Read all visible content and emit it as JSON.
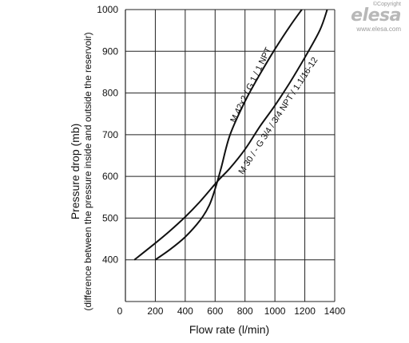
{
  "logo": {
    "copyright": "©Copyright",
    "brand": "elesa",
    "url": "www.elesa.com"
  },
  "chart_data": {
    "type": "line",
    "title": "",
    "xlabel": "Flow rate (l/min)",
    "ylabel": "Pressure drop (mb)",
    "ylabel_sub": "(difference between the pressure inside and outside the reservoir)",
    "xlim": [
      0,
      1400
    ],
    "ylim": [
      300,
      1000
    ],
    "x_ticks": [
      "0",
      "200",
      "400",
      "600",
      "800",
      "1000",
      "1200",
      "1400"
    ],
    "y_ticks": [
      "400",
      "500",
      "600",
      "700",
      "800",
      "900",
      "1000"
    ],
    "grid": true,
    "series": [
      {
        "name": "M 42x2 / G 1 / 1 NPT",
        "x": [
          200,
          300,
          400,
          500,
          560,
          600,
          640,
          700,
          800,
          900,
          1000,
          1100,
          1180
        ],
        "y": [
          400,
          425,
          455,
          495,
          530,
          570,
          620,
          700,
          780,
          845,
          905,
          960,
          1000
        ]
      },
      {
        "name": "M 30 / - G 3/4 / 3/4 NPT / 1.1/16-12",
        "x": [
          60,
          200,
          300,
          400,
          500,
          620,
          700,
          800,
          900,
          1000,
          1100,
          1200,
          1300,
          1350
        ],
        "y": [
          400,
          440,
          470,
          503,
          540,
          590,
          620,
          665,
          720,
          770,
          825,
          885,
          950,
          1000
        ]
      }
    ]
  }
}
